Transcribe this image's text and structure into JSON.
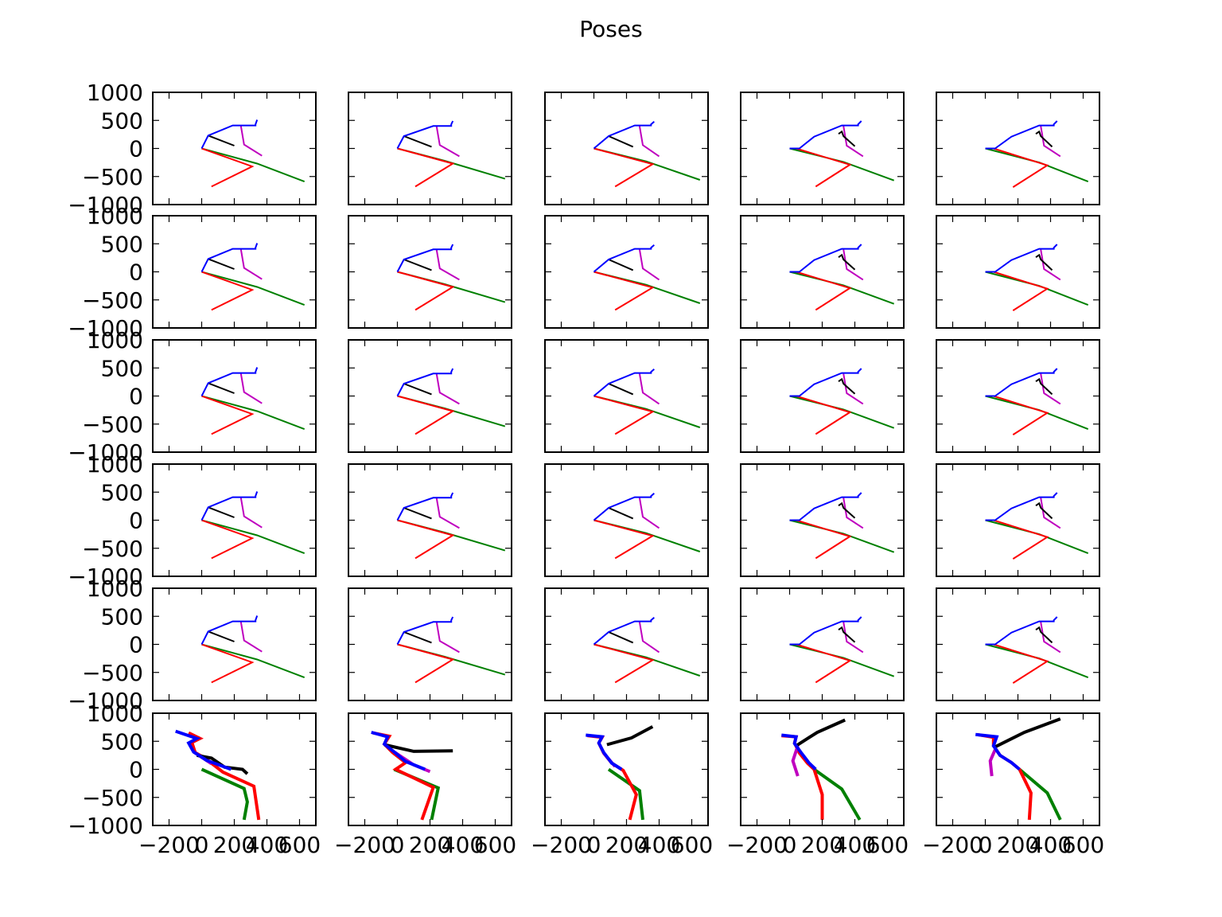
{
  "figure": {
    "title": "Poses"
  },
  "chart_data": {
    "type": "line",
    "title": "Poses",
    "layout": {
      "rows": 6,
      "cols": 5,
      "sharex": true,
      "sharey": true
    },
    "xlim": [
      -300,
      700
    ],
    "ylim": [
      -1000,
      1000
    ],
    "xticks": [
      -200,
      0,
      200,
      400,
      600
    ],
    "xtick_labels": [
      "−200",
      "0",
      "200",
      "400",
      "600"
    ],
    "yticks": [
      -1000,
      -500,
      0,
      500,
      1000
    ],
    "ytick_labels": [
      "−1000",
      "−500",
      "0",
      "500",
      "1000"
    ],
    "grid": false,
    "limb_colors": {
      "red": "#ff0000",
      "green": "#008000",
      "blue": "#0000ff",
      "black": "#000000",
      "magenta": "#bf00bf"
    },
    "top_view_poses": [
      {
        "red": [
          [
            0,
            0
          ],
          [
            310,
            -320
          ],
          [
            60,
            -680
          ]
        ],
        "green": [
          [
            0,
            0
          ],
          [
            340,
            -270
          ],
          [
            630,
            -590
          ]
        ],
        "blue": [
          [
            0,
            0
          ],
          [
            40,
            230
          ],
          [
            190,
            410
          ],
          [
            330,
            410
          ],
          [
            330,
            430
          ],
          [
            340,
            510
          ]
        ],
        "black": [
          [
            40,
            230
          ],
          [
            200,
            50
          ]
        ],
        "magenta": [
          [
            240,
            410
          ],
          [
            260,
            70
          ],
          [
            370,
            -130
          ]
        ]
      },
      {
        "red": [
          [
            0,
            0
          ],
          [
            340,
            -270
          ],
          [
            110,
            -680
          ]
        ],
        "green": [
          [
            0,
            0
          ],
          [
            290,
            -220
          ],
          [
            660,
            -540
          ]
        ],
        "blue": [
          [
            0,
            0
          ],
          [
            40,
            220
          ],
          [
            220,
            400
          ],
          [
            330,
            400
          ],
          [
            330,
            430
          ],
          [
            340,
            490
          ]
        ],
        "black": [
          [
            40,
            220
          ],
          [
            210,
            30
          ]
        ],
        "magenta": [
          [
            240,
            400
          ],
          [
            260,
            60
          ],
          [
            380,
            -140
          ]
        ]
      },
      {
        "red": [
          [
            0,
            0
          ],
          [
            360,
            -280
          ],
          [
            130,
            -680
          ]
        ],
        "green": [
          [
            0,
            0
          ],
          [
            320,
            -230
          ],
          [
            650,
            -560
          ]
        ],
        "blue": [
          [
            0,
            0
          ],
          [
            90,
            220
          ],
          [
            250,
            410
          ],
          [
            350,
            410
          ],
          [
            350,
            430
          ],
          [
            370,
            480
          ]
        ],
        "black": [
          [
            90,
            220
          ],
          [
            240,
            30
          ]
        ],
        "magenta": [
          [
            280,
            400
          ],
          [
            300,
            60
          ],
          [
            400,
            -140
          ]
        ]
      },
      {
        "red": [
          [
            0,
            0
          ],
          [
            40,
            0
          ],
          [
            370,
            -290
          ],
          [
            160,
            -680
          ]
        ],
        "green": [
          [
            0,
            0
          ],
          [
            330,
            -240
          ],
          [
            640,
            -570
          ]
        ],
        "blue": [
          [
            0,
            0
          ],
          [
            60,
            0
          ],
          [
            150,
            210
          ],
          [
            320,
            410
          ],
          [
            420,
            410
          ],
          [
            420,
            430
          ],
          [
            440,
            490
          ]
        ],
        "black": [
          [
            300,
            260
          ],
          [
            320,
            300
          ],
          [
            330,
            220
          ],
          [
            400,
            40
          ]
        ],
        "magenta": [
          [
            330,
            400
          ],
          [
            350,
            50
          ],
          [
            450,
            -140
          ]
        ]
      },
      {
        "red": [
          [
            0,
            0
          ],
          [
            50,
            0
          ],
          [
            380,
            -300
          ],
          [
            170,
            -690
          ]
        ],
        "green": [
          [
            0,
            0
          ],
          [
            330,
            -250
          ],
          [
            630,
            -590
          ]
        ],
        "blue": [
          [
            0,
            0
          ],
          [
            60,
            0
          ],
          [
            160,
            210
          ],
          [
            330,
            410
          ],
          [
            420,
            410
          ],
          [
            420,
            430
          ],
          [
            440,
            490
          ]
        ],
        "black": [
          [
            310,
            260
          ],
          [
            330,
            300
          ],
          [
            340,
            220
          ],
          [
            410,
            30
          ]
        ],
        "magenta": [
          [
            340,
            400
          ],
          [
            360,
            50
          ],
          [
            460,
            -140
          ]
        ]
      }
    ],
    "side_view_poses": [
      {
        "red": [
          [
            -80,
            650
          ],
          [
            -10,
            550
          ],
          [
            -60,
            480
          ],
          [
            -40,
            300
          ],
          [
            20,
            200
          ],
          [
            130,
            -50
          ],
          [
            320,
            -300
          ],
          [
            350,
            -900
          ]
        ],
        "green": [
          [
            0,
            0
          ],
          [
            260,
            -340
          ],
          [
            280,
            -580
          ],
          [
            260,
            -900
          ]
        ],
        "blue": [
          [
            -160,
            680
          ],
          [
            -30,
            550
          ],
          [
            -80,
            470
          ],
          [
            -50,
            310
          ],
          [
            30,
            160
          ],
          [
            180,
            0
          ]
        ],
        "black": [
          [
            -30,
            250
          ],
          [
            60,
            200
          ],
          [
            140,
            40
          ],
          [
            250,
            0
          ],
          [
            280,
            -80
          ]
        ],
        "magenta": [
          [
            -50,
            310
          ],
          [
            60,
            100
          ]
        ]
      },
      {
        "red": [
          [
            -150,
            650
          ],
          [
            -50,
            590
          ],
          [
            -80,
            450
          ],
          [
            -30,
            300
          ],
          [
            50,
            120
          ],
          [
            -10,
            0
          ],
          [
            220,
            -320
          ],
          [
            150,
            -900
          ]
        ],
        "green": [
          [
            -20,
            0
          ],
          [
            250,
            -330
          ],
          [
            210,
            -900
          ]
        ],
        "blue": [
          [
            -160,
            660
          ],
          [
            -60,
            580
          ],
          [
            -80,
            450
          ],
          [
            -20,
            310
          ],
          [
            50,
            140
          ],
          [
            170,
            0
          ]
        ],
        "black": [
          [
            -80,
            440
          ],
          [
            100,
            320
          ],
          [
            340,
            330
          ]
        ],
        "magenta": [
          [
            -20,
            310
          ],
          [
            100,
            80
          ],
          [
            200,
            -40
          ]
        ]
      },
      {
        "red": [
          [
            -40,
            600
          ],
          [
            50,
            570
          ],
          [
            30,
            470
          ],
          [
            60,
            290
          ],
          [
            110,
            110
          ],
          [
            180,
            -20
          ],
          [
            260,
            -450
          ],
          [
            220,
            -900
          ]
        ],
        "green": [
          [
            90,
            0
          ],
          [
            280,
            -380
          ],
          [
            300,
            -900
          ]
        ],
        "blue": [
          [
            -50,
            610
          ],
          [
            50,
            580
          ],
          [
            30,
            470
          ],
          [
            60,
            300
          ],
          [
            110,
            110
          ],
          [
            170,
            0
          ]
        ],
        "black": [
          [
            80,
            440
          ],
          [
            230,
            560
          ],
          [
            360,
            760
          ]
        ],
        "magenta": [
          [
            60,
            290
          ],
          [
            130,
            50
          ]
        ]
      },
      {
        "red": [
          [
            -50,
            600
          ],
          [
            40,
            580
          ],
          [
            30,
            470
          ],
          [
            60,
            290
          ],
          [
            110,
            110
          ],
          [
            150,
            0
          ],
          [
            200,
            -450
          ],
          [
            200,
            -900
          ]
        ],
        "green": [
          [
            150,
            0
          ],
          [
            320,
            -350
          ],
          [
            430,
            -900
          ]
        ],
        "blue": [
          [
            -50,
            610
          ],
          [
            40,
            580
          ],
          [
            30,
            460
          ],
          [
            70,
            300
          ],
          [
            120,
            110
          ],
          [
            160,
            0
          ]
        ],
        "black": [
          [
            40,
            420
          ],
          [
            170,
            660
          ],
          [
            340,
            880
          ]
        ],
        "magenta": [
          [
            50,
            420
          ],
          [
            20,
            150
          ],
          [
            50,
            -120
          ]
        ]
      },
      {
        "red": [
          [
            -50,
            620
          ],
          [
            50,
            570
          ],
          [
            50,
            420
          ],
          [
            90,
            250
          ],
          [
            160,
            120
          ],
          [
            210,
            0
          ],
          [
            280,
            -420
          ],
          [
            270,
            -900
          ]
        ],
        "green": [
          [
            210,
            0
          ],
          [
            380,
            -420
          ],
          [
            460,
            -900
          ]
        ],
        "blue": [
          [
            -60,
            620
          ],
          [
            70,
            580
          ],
          [
            50,
            420
          ],
          [
            90,
            250
          ],
          [
            160,
            120
          ],
          [
            210,
            0
          ]
        ],
        "black": [
          [
            60,
            400
          ],
          [
            240,
            660
          ],
          [
            460,
            900
          ]
        ],
        "magenta": [
          [
            60,
            350
          ],
          [
            30,
            150
          ],
          [
            40,
            -120
          ]
        ]
      }
    ]
  }
}
